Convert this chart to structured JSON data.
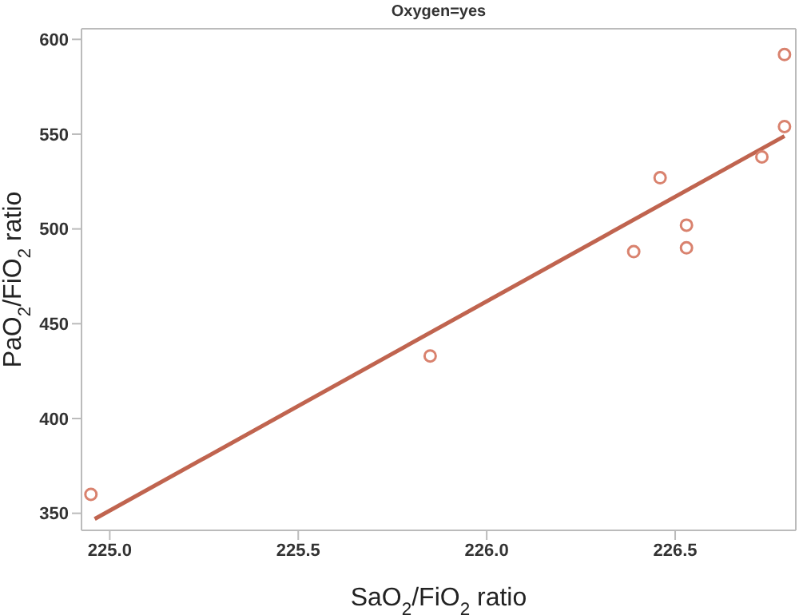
{
  "chart_data": {
    "type": "scatter",
    "title": "Oxygen=yes",
    "xlabel": "SaO$_{2}$/FiO$_{2}$ ratio",
    "ylabel": "PaO$_{2}$/FiO$_{2}$ ratio",
    "xlim": [
      224.925,
      226.82
    ],
    "xticks": [
      {
        "value": 225,
        "label": "225.0"
      },
      {
        "value": 225.5,
        "label": "225.5"
      },
      {
        "value": 226,
        "label": "226.0"
      },
      {
        "value": 226.5,
        "label": "226.5"
      }
    ],
    "ylim": [
      341,
      605.6
    ],
    "yticks": [
      350,
      400,
      450,
      500,
      550,
      600
    ],
    "grid": false,
    "legend": false,
    "series": [
      {
        "type": "scatter",
        "marker": "circle",
        "color": "#d9826e",
        "x": [
          224.95,
          225.85,
          226.39,
          226.46,
          226.53,
          226.53,
          226.73,
          226.79,
          226.79
        ],
        "values": [
          360,
          433,
          488,
          527,
          502,
          490,
          538,
          554,
          592
        ]
      },
      {
        "type": "line",
        "marker": "none",
        "color": "#c0644f",
        "x": [
          224.96,
          226.79
        ],
        "values": [
          347,
          549
        ]
      }
    ]
  }
}
